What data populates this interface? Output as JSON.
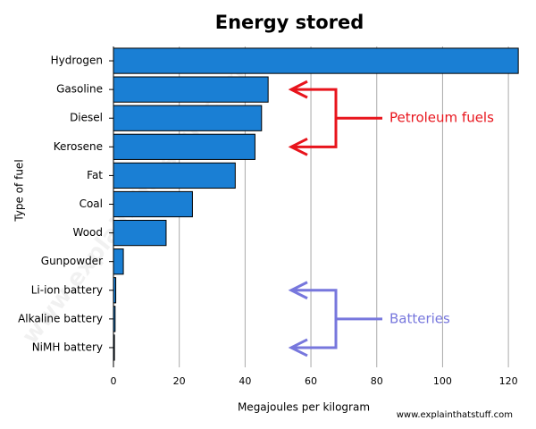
{
  "chart_data": {
    "type": "bar",
    "orientation": "horizontal",
    "title": "Energy stored",
    "x_label": "Megajoules per kilogram",
    "y_label": "Type of fuel",
    "categories": [
      "Hydrogen",
      "Gasoline",
      "Diesel",
      "Kerosene",
      "Fat",
      "Coal",
      "Wood",
      "Gunpowder",
      "Li-ion battery",
      "Alkaline battery",
      "NiMH battery"
    ],
    "values": [
      123,
      47,
      45,
      43,
      37,
      24,
      16,
      3,
      0.7,
      0.5,
      0.3
    ],
    "color": "#1a7fd4",
    "xlim": [
      0,
      123.5
    ],
    "xticks": [
      0,
      20,
      40,
      60,
      80,
      100,
      120
    ],
    "grid": true,
    "annotations": [
      {
        "text": "Petroleum fuels",
        "color": "#e8141c",
        "targets": [
          1,
          3
        ]
      },
      {
        "text": "Batteries",
        "color": "#7777dd",
        "targets": [
          8,
          10
        ]
      }
    ],
    "credit": "www.explainthatstuff.com"
  }
}
